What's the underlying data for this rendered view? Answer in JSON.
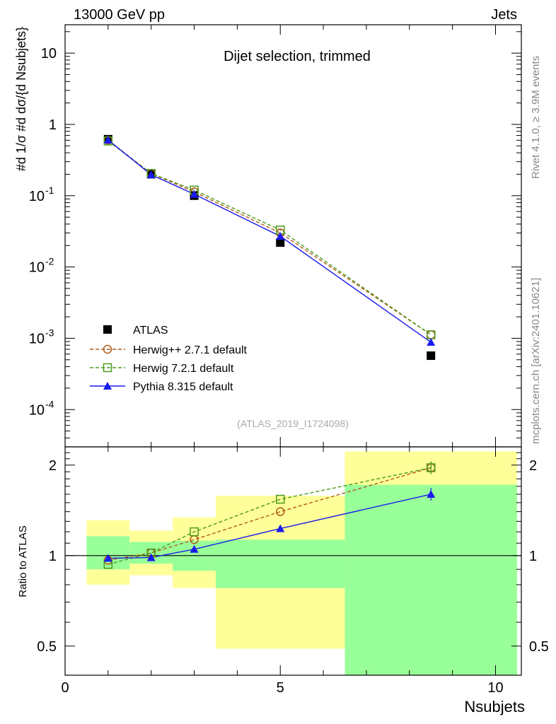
{
  "header": {
    "left": "13000 GeV pp",
    "right": "Jets"
  },
  "annotations": {
    "subtitle": "Dijet selection, trimmed",
    "analysis": "(ATLAS_2019_I1724098)",
    "side_top": "Rivet 4.1.0, ≥ 3.9M events",
    "side_bottom": "mcplots.cern.ch [arXiv:2401.10621]"
  },
  "colors": {
    "data": "#000000",
    "herwigpp": "#b05a1a",
    "herwig7": "#4a9a1a",
    "pythia": "#1a1aee",
    "band_outer": "#ffff99",
    "band_inner": "#99ff99"
  },
  "chart_data": [
    {
      "type": "scatter",
      "panel": "main",
      "ylabel": "#d 1/σ #d dσ/{d Nsubjets}",
      "yscale": "log",
      "xlim": [
        0,
        10.6
      ],
      "ylim": [
        3e-05,
        25
      ],
      "ytick_labels": [
        "10^-4",
        "10^-3",
        "10^-2",
        "10^-1",
        "1",
        "10"
      ],
      "legend_position": "bottom-left",
      "x": [
        1,
        2,
        3,
        5,
        8.5
      ],
      "series": [
        {
          "name": "ATLAS",
          "marker": "square-filled",
          "line": "none",
          "values": [
            0.62,
            0.2,
            0.1,
            0.022,
            0.00057
          ]
        },
        {
          "name": "Herwig++ 2.7.1 default",
          "marker": "circle-open",
          "line": "dashed",
          "values": [
            0.6,
            0.205,
            0.113,
            0.03,
            0.00112
          ]
        },
        {
          "name": "Herwig 7.2.1 default",
          "marker": "square-open",
          "line": "dashed",
          "values": [
            0.585,
            0.205,
            0.12,
            0.033,
            0.00112
          ]
        },
        {
          "name": "Pythia 8.315 default",
          "marker": "triangle-filled",
          "line": "solid",
          "values": [
            0.605,
            0.197,
            0.105,
            0.027,
            0.00088
          ]
        }
      ]
    },
    {
      "type": "line",
      "panel": "ratio",
      "ylabel": "Ratio to ATLAS",
      "xlabel": "Nsubjets",
      "xlim": [
        0,
        10.6
      ],
      "ylim": [
        0.4,
        2.3
      ],
      "ytick_labels": [
        "0.5",
        "1",
        "2"
      ],
      "xtick_labels": [
        "0",
        "5",
        "10"
      ],
      "x": [
        1,
        2,
        3,
        5,
        8.5
      ],
      "reference": 1,
      "uncertainty_bands": {
        "bin_edges": [
          0.5,
          1.5,
          2.5,
          3.5,
          6.5,
          10.5
        ],
        "outer_low": [
          0.8,
          0.86,
          0.78,
          0.49,
          0.4
        ],
        "outer_high": [
          1.31,
          1.21,
          1.34,
          1.58,
          2.22
        ],
        "inner_low": [
          0.9,
          0.94,
          0.89,
          0.78,
          0.4
        ],
        "inner_high": [
          1.16,
          1.11,
          1.12,
          1.13,
          1.72
        ]
      },
      "series": [
        {
          "name": "Herwig++ 2.7.1 default",
          "marker": "circle-open",
          "line": "dashed",
          "values": [
            0.965,
            1.02,
            1.13,
            1.4,
            1.96
          ]
        },
        {
          "name": "Herwig 7.2.1 default",
          "marker": "square-open",
          "line": "dashed",
          "values": [
            0.935,
            1.02,
            1.2,
            1.54,
            1.96
          ]
        },
        {
          "name": "Pythia 8.315 default",
          "marker": "triangle-filled",
          "line": "solid",
          "values": [
            0.98,
            0.985,
            1.05,
            1.23,
            1.6
          ]
        }
      ]
    }
  ]
}
